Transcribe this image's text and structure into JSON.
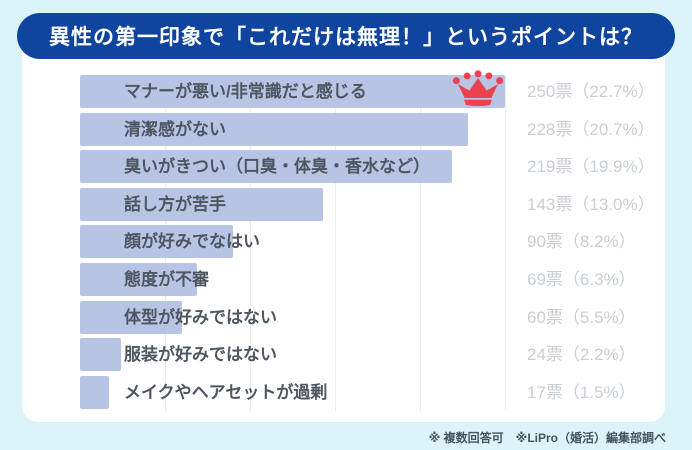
{
  "title": "異性の第一印象で「これだけは無理！」というポイントは？",
  "footer_note": "※ 複数回答可　※LiPro（婚活）編集部調べ",
  "chart_data": {
    "type": "bar",
    "orientation": "horizontal",
    "title": "異性の第一印象で「これだけは無理！」というポイントは？",
    "unit": "票",
    "value_axis_max": 250,
    "gridline_interval": 50,
    "grid": true,
    "legend": "none",
    "categories": [
      "マナーが悪い/非常識だと感じる",
      "清潔感がない",
      "臭いがきつい（口臭・体臭・香水など）",
      "話し方が苦手",
      "顔が好みでなはい",
      "態度が不審",
      "体型が好みではない",
      "服装が好みではない",
      "メイクやヘアセットが過剰"
    ],
    "values": [
      250,
      228,
      219,
      143,
      90,
      69,
      60,
      24,
      17
    ],
    "percentages": [
      "22.7",
      "20.7",
      "19.9",
      "13.0",
      "8.2",
      "6.3",
      "5.5",
      "2.2",
      "1.5"
    ],
    "value_labels": [
      "250票（22.7%）",
      "228票（20.7%）",
      "219票（19.9%）",
      "143票（13.0%）",
      "90票（8.2%）",
      "69票（6.3%）",
      "60票（5.5%）",
      "24票（2.2%）",
      "17票（1.5%）"
    ],
    "top_item_marker": "crown"
  },
  "icons": {
    "winner": "crown-icon"
  },
  "colors": {
    "background": "#dbf4fa",
    "card": "#ffffff",
    "banner": "#10459f",
    "banner_text": "#ffffff",
    "bar": "#b8c4e4",
    "bar_label": "#4e5661",
    "value_label": "#c9ced6",
    "footer": "#46545e",
    "crown": "#ec4250",
    "gridline": "#e9ecf0"
  }
}
